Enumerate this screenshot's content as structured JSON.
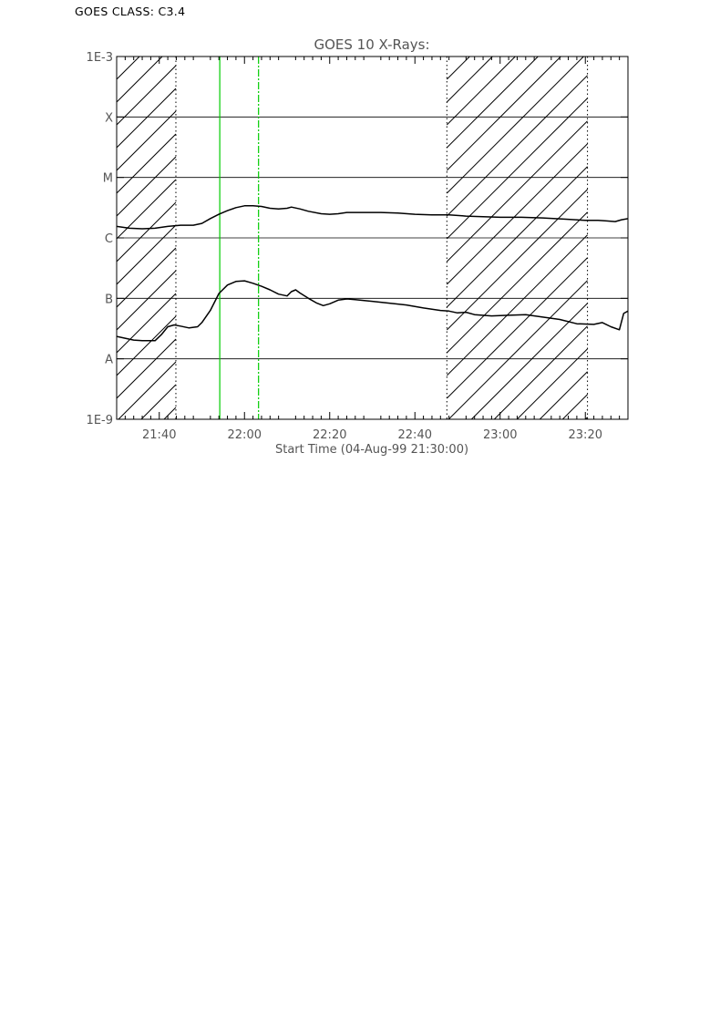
{
  "goes_class_label": "GOES CLASS: C3.4",
  "chart_data": {
    "type": "line",
    "title": "GOES 10 X-Rays:",
    "xlabel": "Start Time (04-Aug-99 21:30:00)",
    "ylabel": "",
    "y_scale": "log",
    "x_range_minutes": [
      0,
      120
    ],
    "ylim": [
      1e-09,
      0.001
    ],
    "x_ticks": [
      {
        "label": "21:40",
        "minutes": 10
      },
      {
        "label": "22:00",
        "minutes": 30
      },
      {
        "label": "22:20",
        "minutes": 50
      },
      {
        "label": "22:40",
        "minutes": 70
      },
      {
        "label": "23:00",
        "minutes": 90
      },
      {
        "label": "23:20",
        "minutes": 110
      }
    ],
    "y_ticks": [
      {
        "label": "1E-9",
        "exp": -9
      },
      {
        "label": "A",
        "exp": -8
      },
      {
        "label": "B",
        "exp": -7
      },
      {
        "label": "C",
        "exp": -6
      },
      {
        "label": "M",
        "exp": -5
      },
      {
        "label": "X",
        "exp": -4
      },
      {
        "label": "1E-3",
        "exp": -3
      }
    ],
    "grid_exps": [
      -8,
      -7,
      -6,
      -5,
      -4
    ],
    "hatched_intervals_minutes": [
      [
        0,
        13.9
      ],
      [
        77.5,
        110.5
      ]
    ],
    "dotted_lines_minutes": [
      13.9,
      77.5,
      110.5
    ],
    "event_lines": [
      {
        "minutes": 24.2,
        "style": "solid",
        "color": "#00cc00"
      },
      {
        "minutes": 33.3,
        "style": "dashed",
        "color": "#00cc00"
      }
    ],
    "series": [
      {
        "color": "#000000",
        "points": [
          [
            0,
            -5.81
          ],
          [
            3,
            -5.84
          ],
          [
            6,
            -5.85
          ],
          [
            9,
            -5.84
          ],
          [
            12,
            -5.81
          ],
          [
            15,
            -5.79
          ],
          [
            18,
            -5.79
          ],
          [
            20,
            -5.76
          ],
          [
            22,
            -5.68
          ],
          [
            24,
            -5.61
          ],
          [
            26,
            -5.55
          ],
          [
            28,
            -5.5
          ],
          [
            30,
            -5.47
          ],
          [
            32,
            -5.47
          ],
          [
            34,
            -5.48
          ],
          [
            36,
            -5.51
          ],
          [
            38,
            -5.52
          ],
          [
            40,
            -5.51
          ],
          [
            41,
            -5.49
          ],
          [
            43,
            -5.52
          ],
          [
            45,
            -5.56
          ],
          [
            48,
            -5.6
          ],
          [
            50,
            -5.61
          ],
          [
            52,
            -5.6
          ],
          [
            54,
            -5.58
          ],
          [
            58,
            -5.58
          ],
          [
            62,
            -5.58
          ],
          [
            66,
            -5.59
          ],
          [
            70,
            -5.61
          ],
          [
            74,
            -5.62
          ],
          [
            78,
            -5.62
          ],
          [
            82,
            -5.64
          ],
          [
            86,
            -5.65
          ],
          [
            90,
            -5.66
          ],
          [
            95,
            -5.66
          ],
          [
            100,
            -5.67
          ],
          [
            105,
            -5.69
          ],
          [
            110,
            -5.71
          ],
          [
            113,
            -5.71
          ],
          [
            115,
            -5.72
          ],
          [
            117,
            -5.73
          ],
          [
            118.5,
            -5.7
          ],
          [
            120,
            -5.68
          ]
        ]
      },
      {
        "color": "#000000",
        "points": [
          [
            0,
            -7.63
          ],
          [
            2,
            -7.66
          ],
          [
            4,
            -7.69
          ],
          [
            6,
            -7.7
          ],
          [
            8,
            -7.7
          ],
          [
            9,
            -7.7
          ],
          [
            10.5,
            -7.6
          ],
          [
            12,
            -7.47
          ],
          [
            13.5,
            -7.44
          ],
          [
            15,
            -7.46
          ],
          [
            17,
            -7.49
          ],
          [
            19,
            -7.47
          ],
          [
            20,
            -7.4
          ],
          [
            22,
            -7.2
          ],
          [
            24,
            -6.92
          ],
          [
            26,
            -6.78
          ],
          [
            28,
            -6.72
          ],
          [
            30,
            -6.71
          ],
          [
            32,
            -6.75
          ],
          [
            34,
            -6.8
          ],
          [
            36,
            -6.86
          ],
          [
            38,
            -6.93
          ],
          [
            40,
            -6.96
          ],
          [
            41,
            -6.89
          ],
          [
            42,
            -6.86
          ],
          [
            43,
            -6.91
          ],
          [
            45,
            -7
          ],
          [
            47,
            -7.08
          ],
          [
            48.5,
            -7.12
          ],
          [
            50,
            -7.09
          ],
          [
            52,
            -7.03
          ],
          [
            54,
            -7.01
          ],
          [
            56,
            -7.02
          ],
          [
            60,
            -7.05
          ],
          [
            64,
            -7.08
          ],
          [
            68,
            -7.11
          ],
          [
            72,
            -7.16
          ],
          [
            76,
            -7.2
          ],
          [
            78,
            -7.21
          ],
          [
            80,
            -7.24
          ],
          [
            82,
            -7.23
          ],
          [
            84,
            -7.27
          ],
          [
            88,
            -7.29
          ],
          [
            92,
            -7.28
          ],
          [
            96,
            -7.27
          ],
          [
            100,
            -7.31
          ],
          [
            104,
            -7.35
          ],
          [
            108,
            -7.42
          ],
          [
            112,
            -7.43
          ],
          [
            114,
            -7.4
          ],
          [
            116,
            -7.47
          ],
          [
            118,
            -7.52
          ],
          [
            119,
            -7.25
          ],
          [
            120,
            -7.21
          ]
        ]
      }
    ]
  }
}
